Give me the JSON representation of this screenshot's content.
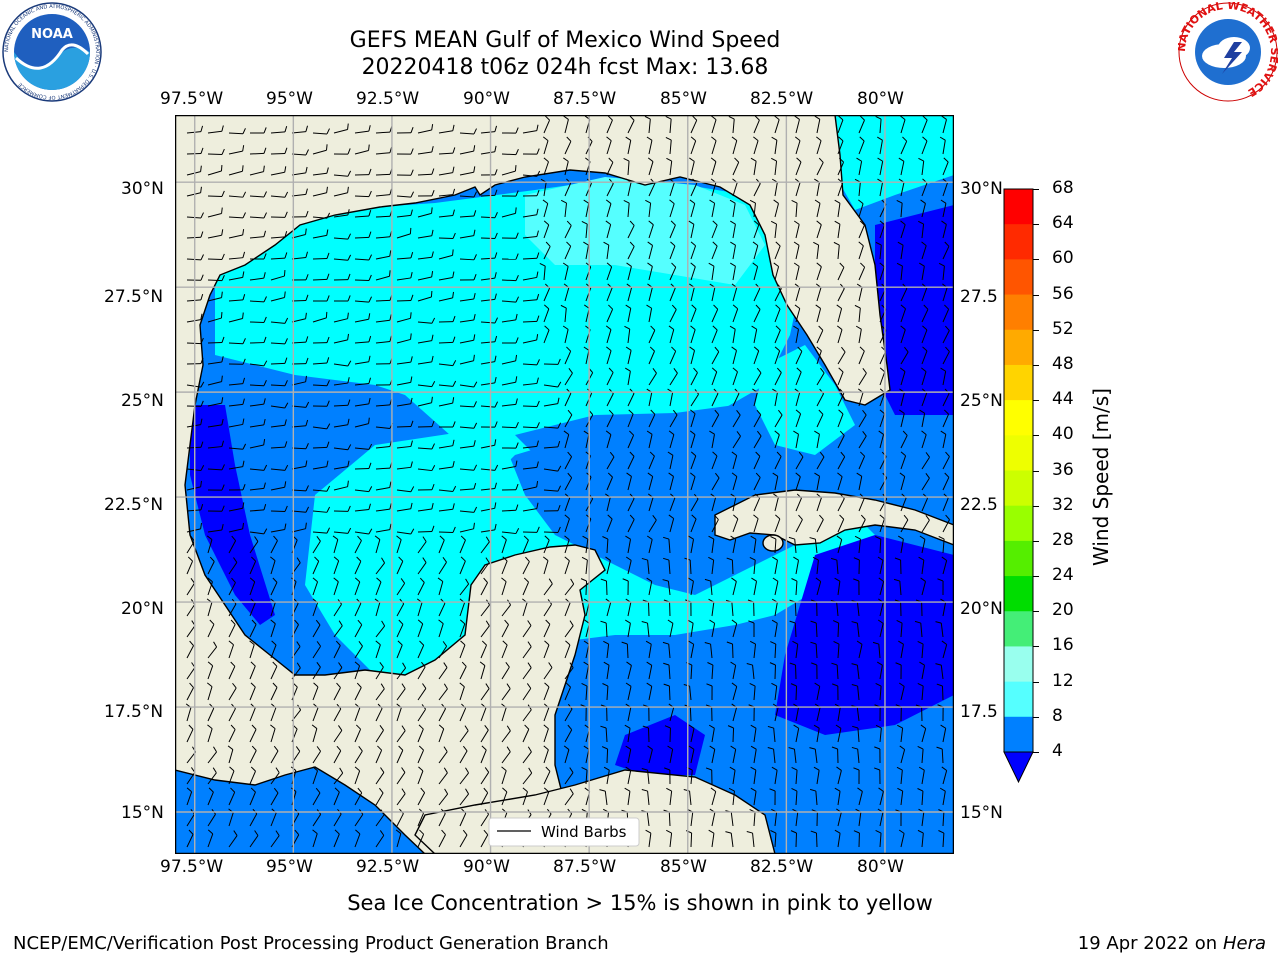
{
  "title": {
    "line1": "GEFS MEAN Gulf of Mexico Wind Speed",
    "line2": "20220418 t06z 024h fcst   Max: 13.68"
  },
  "logos": {
    "noaa_text": "NOAA",
    "noaa_ring_text": "NATIONAL OCEANIC AND ATMOSPHERIC ADMINISTRATION · U.S. DEPARTMENT OF COMMERCE",
    "nws_ring_text": "NATIONAL WEATHER SERVICE"
  },
  "map": {
    "lon_labels": [
      "97.5°W",
      "95°W",
      "92.5°W",
      "90°W",
      "87.5°W",
      "85°W",
      "82.5°W",
      "80°W"
    ],
    "lat_labels_left": [
      "30°N",
      "27.5°N",
      "25°N",
      "22.5°N",
      "20°N",
      "17.5°N",
      "15°N"
    ],
    "lat_labels_right": [
      "30°N",
      "27.5",
      "25°N",
      "22.5",
      "20°N",
      "17.5",
      "15°N"
    ],
    "legend_label": "Wind Barbs",
    "extent": {
      "lon_min": -98,
      "lon_max": -78.25,
      "lat_min": 14.0,
      "lat_max": 31.6
    },
    "colors": {
      "land": "#eeeedd",
      "grid": "#b0b0b0"
    }
  },
  "colorbar": {
    "label": "Wind Speed [m/s]",
    "ticks": [
      "68",
      "64",
      "60",
      "56",
      "52",
      "48",
      "44",
      "40",
      "36",
      "32",
      "28",
      "24",
      "20",
      "16",
      "12",
      "8",
      "4"
    ],
    "colors": [
      "#ff0000",
      "#ff2a00",
      "#ff5500",
      "#ff7f00",
      "#ffaa00",
      "#ffd400",
      "#ffff00",
      "#eeff00",
      "#ccff00",
      "#99ff00",
      "#55ee00",
      "#00dd00",
      "#44ee77",
      "#99ffee",
      "#55ffff",
      "#00ffff",
      "#0080ff"
    ],
    "extend_color": "#0000ff"
  },
  "subtitle": "Sea Ice Concentration > 15% is shown in pink to yellow",
  "footer": {
    "left": "NCEP/EMC/Verification Post Processing Product Generation Branch",
    "right_date": "19 Apr 2022 on ",
    "right_host": "Hera"
  }
}
